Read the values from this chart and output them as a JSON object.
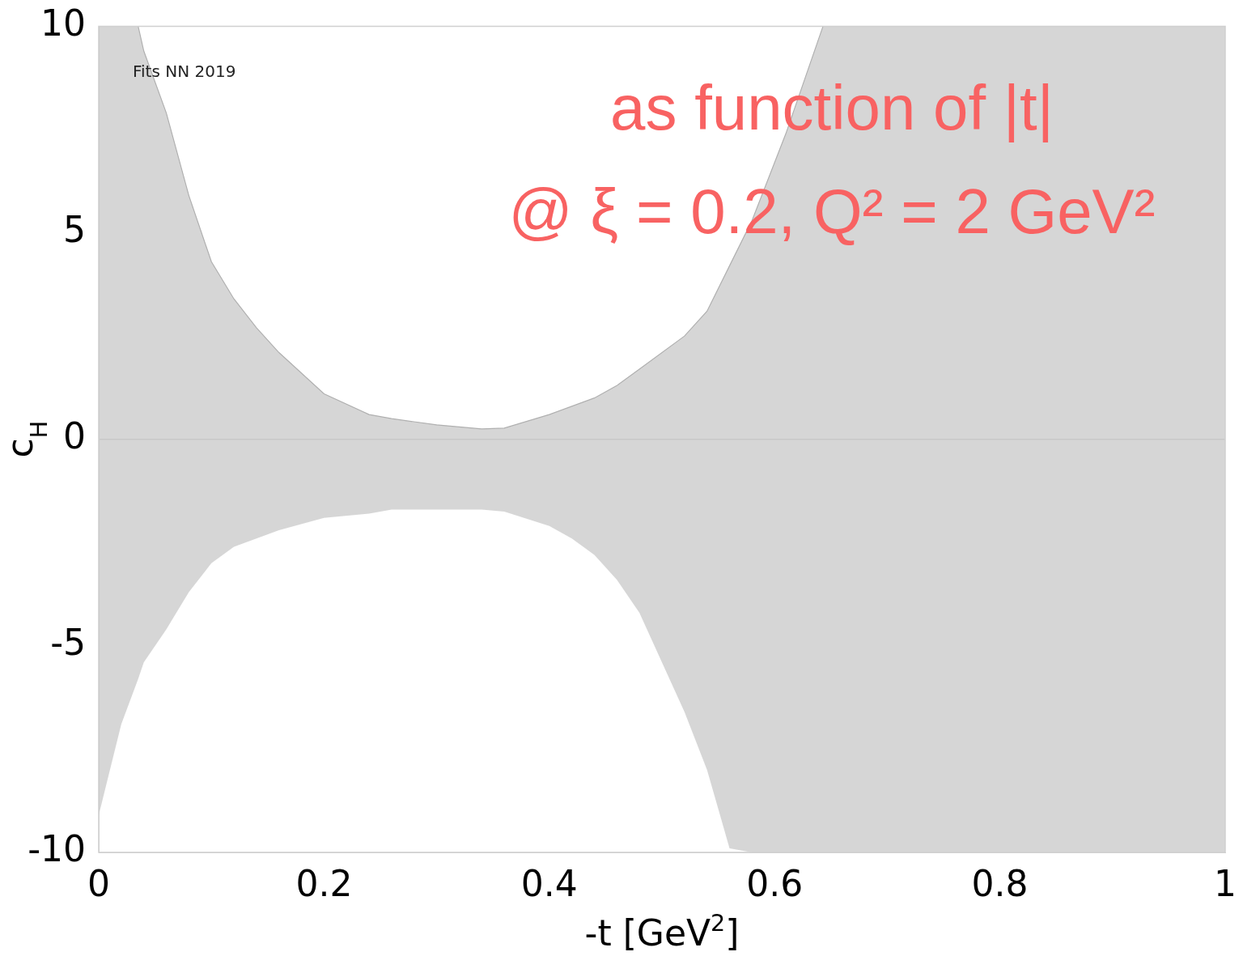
{
  "chart_data": {
    "type": "line",
    "xlabel": "-t [GeV$^{2}$]",
    "ylabel": "c$_{H}$",
    "annotations": [
      "Fits NN 2019",
      "as function of |t|",
      "@ ξ = 0.2, Q² = 2 GeV²"
    ],
    "xlim": [
      0,
      1
    ],
    "xticks": [
      0,
      0.2,
      0.4,
      0.6,
      0.8,
      1
    ],
    "ylim": [
      -10,
      10
    ],
    "yticks": [
      -10,
      -5,
      0,
      5,
      10
    ],
    "grid": false,
    "legend": false,
    "x": [
      0,
      0.02,
      0.035,
      0.04,
      0.06,
      0.08,
      0.1,
      0.12,
      0.14,
      0.16,
      0.2,
      0.24,
      0.26,
      0.3,
      0.34,
      0.36,
      0.4,
      0.42,
      0.44,
      0.46,
      0.48,
      0.52,
      0.54,
      0.56,
      0.58,
      0.61,
      0.643,
      0.7,
      0.8,
      0.9,
      1
    ],
    "ref_lines": [
      {
        "axis": "y",
        "value": 0,
        "color": "#c8c8c8"
      }
    ],
    "series": [
      {
        "color": "#b0b0b0",
        "values": [
          10,
          10,
          10,
          9.4,
          7.9,
          5.9,
          4.3,
          3.4,
          2.7,
          2.1,
          1.1,
          0.6,
          0.5,
          0.35,
          0.25,
          0.27,
          0.6,
          0.8,
          1.0,
          1.3,
          1.7,
          2.5,
          3.1,
          4.2,
          5.3,
          7.4,
          10,
          10,
          10,
          10,
          10
        ],
        "lower": [
          -9.1,
          -6.9,
          -5.8,
          -5.4,
          -4.6,
          -3.7,
          -3.0,
          -2.6,
          -2.4,
          -2.2,
          -1.9,
          -1.8,
          -1.7,
          -1.7,
          -1.7,
          -1.75,
          -2.1,
          -2.4,
          -2.8,
          -3.4,
          -4.2,
          -6.6,
          -8.0,
          -9.9,
          -10,
          -10,
          -10,
          -10,
          -10,
          -10,
          -10
        ],
        "upper": [
          10,
          10,
          10,
          9.4,
          7.9,
          5.9,
          4.3,
          3.4,
          2.7,
          2.1,
          1.1,
          0.6,
          0.5,
          0.35,
          0.25,
          0.27,
          0.6,
          0.8,
          1.0,
          1.3,
          1.7,
          2.5,
          3.1,
          4.2,
          5.3,
          7.4,
          10,
          10,
          10,
          10,
          10
        ]
      }
    ]
  }
}
